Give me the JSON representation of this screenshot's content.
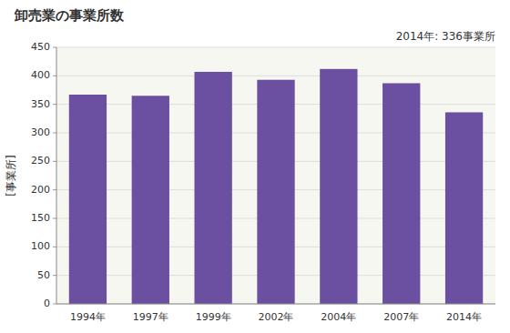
{
  "chart_data": {
    "type": "bar",
    "title": "卸売業の事業所数",
    "ylabel": "[事業所]",
    "annotation": "2014年: 336事業所",
    "categories": [
      "1994年",
      "1997年",
      "1999年",
      "2002年",
      "2004年",
      "2007年",
      "2014年"
    ],
    "values": [
      367,
      365,
      407,
      393,
      412,
      387,
      336
    ],
    "color": "#6b4fa0",
    "ylim": [
      0,
      450
    ],
    "yticks": [
      0,
      50,
      100,
      150,
      200,
      250,
      300,
      350,
      400,
      450
    ],
    "grid": true
  }
}
